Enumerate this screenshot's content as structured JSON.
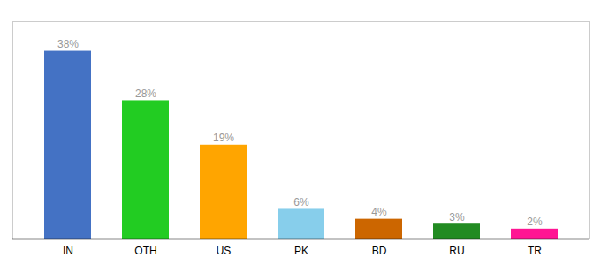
{
  "chart_data": {
    "type": "bar",
    "categories": [
      "IN",
      "OTH",
      "US",
      "PK",
      "BD",
      "RU",
      "TR"
    ],
    "values": [
      38,
      28,
      19,
      6,
      4,
      3,
      2
    ],
    "value_labels": [
      "38%",
      "28%",
      "19%",
      "6%",
      "4%",
      "3%",
      "2%"
    ],
    "data_labels": true,
    "colors": [
      "#4472C4",
      "#22CC22",
      "#FFA500",
      "#87CEEB",
      "#CC6600",
      "#228B22",
      "#FF1493"
    ],
    "ylim": [
      0,
      44
    ],
    "grid": false,
    "tick_labels": "x"
  }
}
